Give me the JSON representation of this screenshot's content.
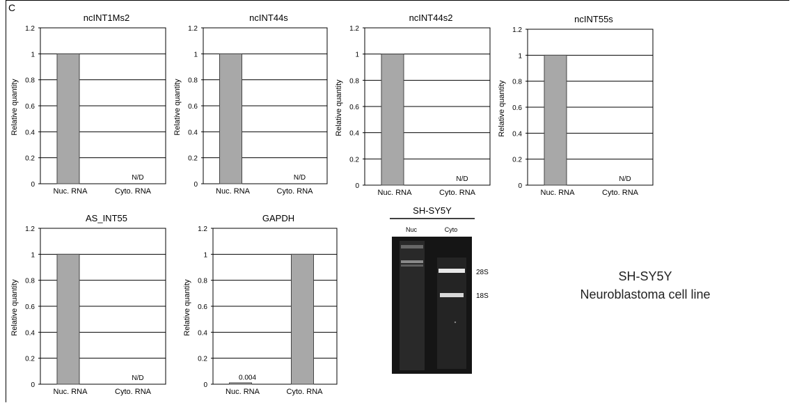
{
  "panel_label": "C",
  "colors": {
    "bar": "#a8a8a8",
    "bar_stroke": "#444444",
    "grid": "#000000",
    "gel_bg": "#151515",
    "band": "#e8e8e8"
  },
  "chart_data": [
    {
      "type": "bar",
      "title": "ncINT1Ms2",
      "ylabel": "Relative quantity",
      "categories": [
        "Nuc. RNA",
        "Cyto. RNA"
      ],
      "values": [
        1,
        0
      ],
      "data_labels": [
        "",
        "N/D"
      ],
      "yticks": [
        "0",
        "0.2",
        "0.4",
        "0.6",
        "0.8",
        "1",
        "1.2"
      ],
      "ylim": [
        0,
        1.2
      ],
      "grid": true
    },
    {
      "type": "bar",
      "title": "ncINT44s",
      "ylabel": "Relative quantity",
      "categories": [
        "Nuc. RNA",
        "Cyto. RNA"
      ],
      "values": [
        1,
        0
      ],
      "data_labels": [
        "",
        "N/D"
      ],
      "yticks": [
        "0",
        "0.2",
        "0.4",
        "0.6",
        "0.8",
        "1",
        "1.2"
      ],
      "ylim": [
        0,
        1.2
      ],
      "grid": true
    },
    {
      "type": "bar",
      "title": "ncINT44s2",
      "ylabel": "Relative quantity",
      "categories": [
        "Nuc. RNA",
        "Cyto. RNA"
      ],
      "values": [
        1,
        0
      ],
      "data_labels": [
        "",
        "N/D"
      ],
      "yticks": [
        "0",
        "0.2",
        "0.4",
        "0.6",
        "0.8",
        "1",
        "1.2"
      ],
      "ylim": [
        0,
        1.2
      ],
      "grid": true
    },
    {
      "type": "bar",
      "title": "ncINT55s",
      "ylabel": "Relative quantity",
      "categories": [
        "Nuc. RNA",
        "Cyto. RNA"
      ],
      "values": [
        1,
        0
      ],
      "data_labels": [
        "",
        "N/D"
      ],
      "yticks": [
        "0",
        "0.2",
        "0.4",
        "0.6",
        "0.8",
        "1",
        "1.2"
      ],
      "ylim": [
        0,
        1.2
      ],
      "grid": true
    },
    {
      "type": "bar",
      "title": "AS_INT55",
      "ylabel": "Relative quantity",
      "categories": [
        "Nuc. RNA",
        "Cyto. RNA"
      ],
      "values": [
        1,
        0
      ],
      "data_labels": [
        "",
        "N/D"
      ],
      "yticks": [
        "0",
        "0.2",
        "0.4",
        "0.6",
        "0.8",
        "1",
        "1.2"
      ],
      "ylim": [
        0,
        1.2
      ],
      "grid": true
    },
    {
      "type": "bar",
      "title": "GAPDH",
      "ylabel": "Relative quantity",
      "categories": [
        "Nuc. RNA",
        "Cyto. RNA"
      ],
      "values": [
        0.004,
        1
      ],
      "data_labels": [
        "0.004",
        ""
      ],
      "yticks": [
        "0",
        "0.2",
        "0.4",
        "0.6",
        "0.8",
        "1",
        "1.2"
      ],
      "ylim": [
        0,
        1.2
      ],
      "grid": true
    }
  ],
  "gel": {
    "title": "SH-SY5Y",
    "lanes": [
      "Nuc",
      "Cyto"
    ],
    "markers": [
      "28S",
      "18S"
    ]
  },
  "caption": {
    "line1": "SH-SY5Y",
    "line2": "Neuroblastoma cell line"
  }
}
